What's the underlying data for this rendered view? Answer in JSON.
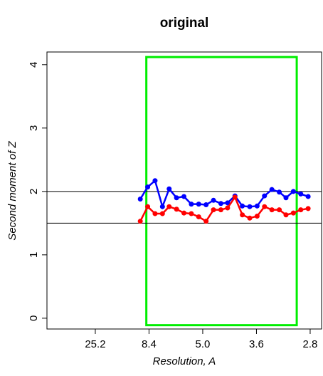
{
  "chart_data": {
    "type": "line",
    "title": "original",
    "xlabel": "Resolution, A",
    "ylabel": "Second moment of Z",
    "x": [
      0.107,
      0.118,
      0.129,
      0.14,
      0.15,
      0.161,
      0.172,
      0.183,
      0.194,
      0.205,
      0.216,
      0.227,
      0.237,
      0.248,
      0.259,
      0.27,
      0.281,
      0.292,
      0.303,
      0.314,
      0.324,
      0.335,
      0.346,
      0.357
    ],
    "series": [
      {
        "name": "blue",
        "color": "#0000ff",
        "values": [
          1.88,
          2.07,
          2.17,
          1.76,
          2.04,
          1.9,
          1.92,
          1.8,
          1.8,
          1.79,
          1.86,
          1.81,
          1.82,
          1.93,
          1.77,
          1.76,
          1.77,
          1.93,
          2.03,
          1.99,
          1.9,
          2.0,
          1.96,
          1.92
        ]
      },
      {
        "name": "red",
        "color": "#ff0000",
        "values": [
          1.53,
          1.76,
          1.65,
          1.65,
          1.76,
          1.72,
          1.66,
          1.65,
          1.6,
          1.53,
          1.71,
          1.71,
          1.74,
          1.91,
          1.63,
          1.58,
          1.61,
          1.76,
          1.71,
          1.71,
          1.63,
          1.66,
          1.71,
          1.73
        ]
      }
    ],
    "xlim": [
      -0.032,
      0.377
    ],
    "ylim": [
      -0.17,
      4.2
    ],
    "xticks": [
      {
        "value": 0.04,
        "label": "25.2"
      },
      {
        "value": 0.12,
        "label": "8.4"
      },
      {
        "value": 0.2,
        "label": "5.0"
      },
      {
        "value": 0.28,
        "label": "3.6"
      },
      {
        "value": 0.36,
        "label": "2.8"
      }
    ],
    "yticks": [
      0,
      1,
      2,
      3,
      4
    ],
    "hlines": [
      2,
      1.5
    ],
    "highlight": {
      "xlim": [
        0.116,
        0.34
      ],
      "ylim": [
        -0.11,
        4.12
      ],
      "color": "#00ee00"
    }
  }
}
